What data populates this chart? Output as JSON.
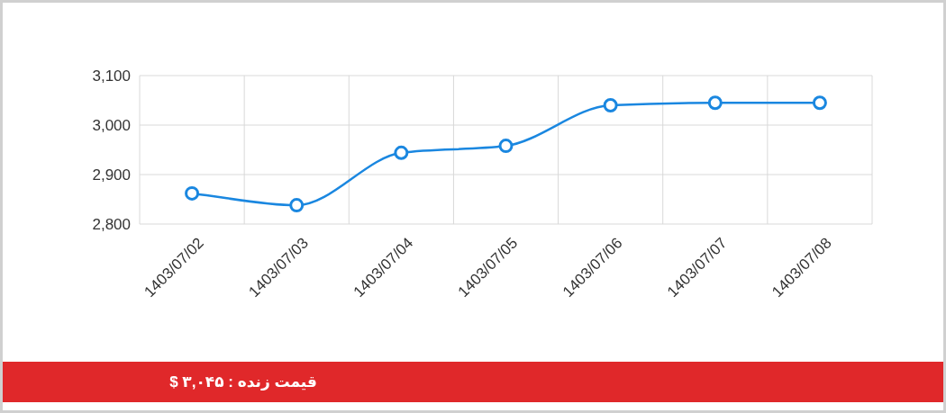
{
  "chart_data": {
    "type": "line",
    "categories": [
      "1403/07/02",
      "1403/07/03",
      "1403/07/04",
      "1403/07/05",
      "1403/07/06",
      "1403/07/07",
      "1403/07/08"
    ],
    "series": [
      {
        "color": "#1a87e0",
        "values": [
          2862,
          2838,
          2944,
          2958,
          3040,
          3045,
          3045
        ]
      }
    ],
    "ylim": [
      2800,
      3100
    ],
    "yticks": [
      {
        "value": 2800,
        "label": "2,800"
      },
      {
        "value": 2900,
        "label": "2,900"
      },
      {
        "value": 3000,
        "label": "3,000"
      },
      {
        "value": 3100,
        "label": "3,100"
      }
    ],
    "grid": true,
    "marker": "circle",
    "annotations": [
      "قیمت زنده : ۳,۰۴۵ $"
    ]
  }
}
